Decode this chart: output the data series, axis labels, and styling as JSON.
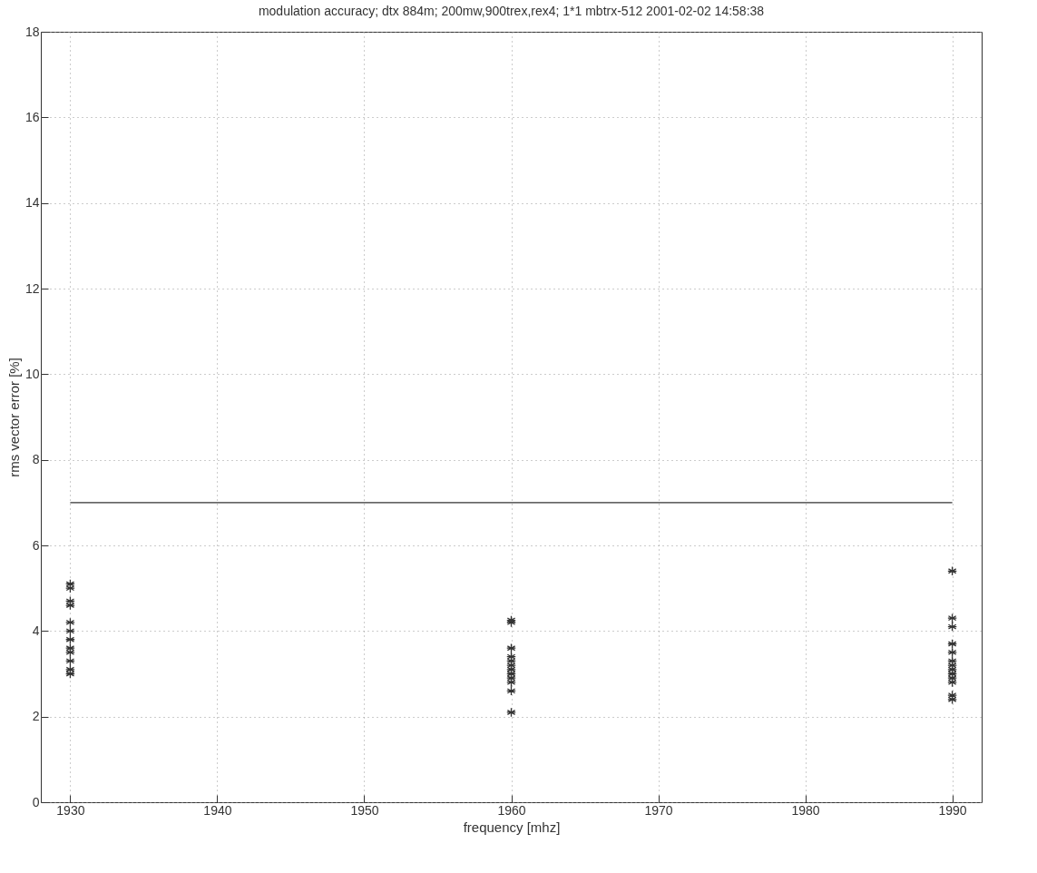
{
  "chart_data": {
    "type": "scatter",
    "title": "modulation accuracy; dtx 884m; 200mw,900trex,rex4; 1*1  mbtrx-512  2001-02-02  14:58:38",
    "xlabel": "frequency [mhz]",
    "ylabel": "rms vector error [%]",
    "xlim": [
      1928,
      1992
    ],
    "xticks": [
      1930,
      1940,
      1950,
      1960,
      1970,
      1980,
      1990
    ],
    "ylim": [
      0,
      18
    ],
    "yticks": [
      0,
      2,
      4,
      6,
      8,
      10,
      12,
      14,
      16,
      18
    ],
    "grid": true,
    "marker": "cross",
    "series": [
      {
        "color": "#333333",
        "x": [
          1930,
          1930,
          1930,
          1930,
          1930,
          1930,
          1930,
          1930,
          1930,
          1930,
          1930,
          1930,
          1960,
          1960,
          1960,
          1960,
          1960,
          1960,
          1960,
          1960,
          1960,
          1960,
          1960,
          1960,
          1990,
          1990,
          1990,
          1990,
          1990,
          1990,
          1990,
          1990,
          1990,
          1990,
          1990,
          1990,
          1990
        ],
        "values": [
          3.0,
          3.1,
          3.3,
          3.5,
          3.6,
          3.8,
          4.0,
          4.2,
          4.6,
          4.7,
          5.0,
          5.1,
          2.1,
          2.6,
          2.8,
          2.9,
          3.0,
          3.1,
          3.2,
          3.3,
          3.4,
          3.6,
          4.2,
          4.25,
          2.4,
          2.5,
          2.8,
          2.9,
          3.0,
          3.1,
          3.2,
          3.3,
          3.5,
          3.7,
          4.1,
          4.3,
          5.4
        ]
      },
      {
        "type": "line",
        "color": "#333333",
        "marker": "none",
        "line_style": "solid",
        "x": [
          1930,
          1990
        ],
        "values": [
          7,
          7
        ]
      }
    ]
  }
}
